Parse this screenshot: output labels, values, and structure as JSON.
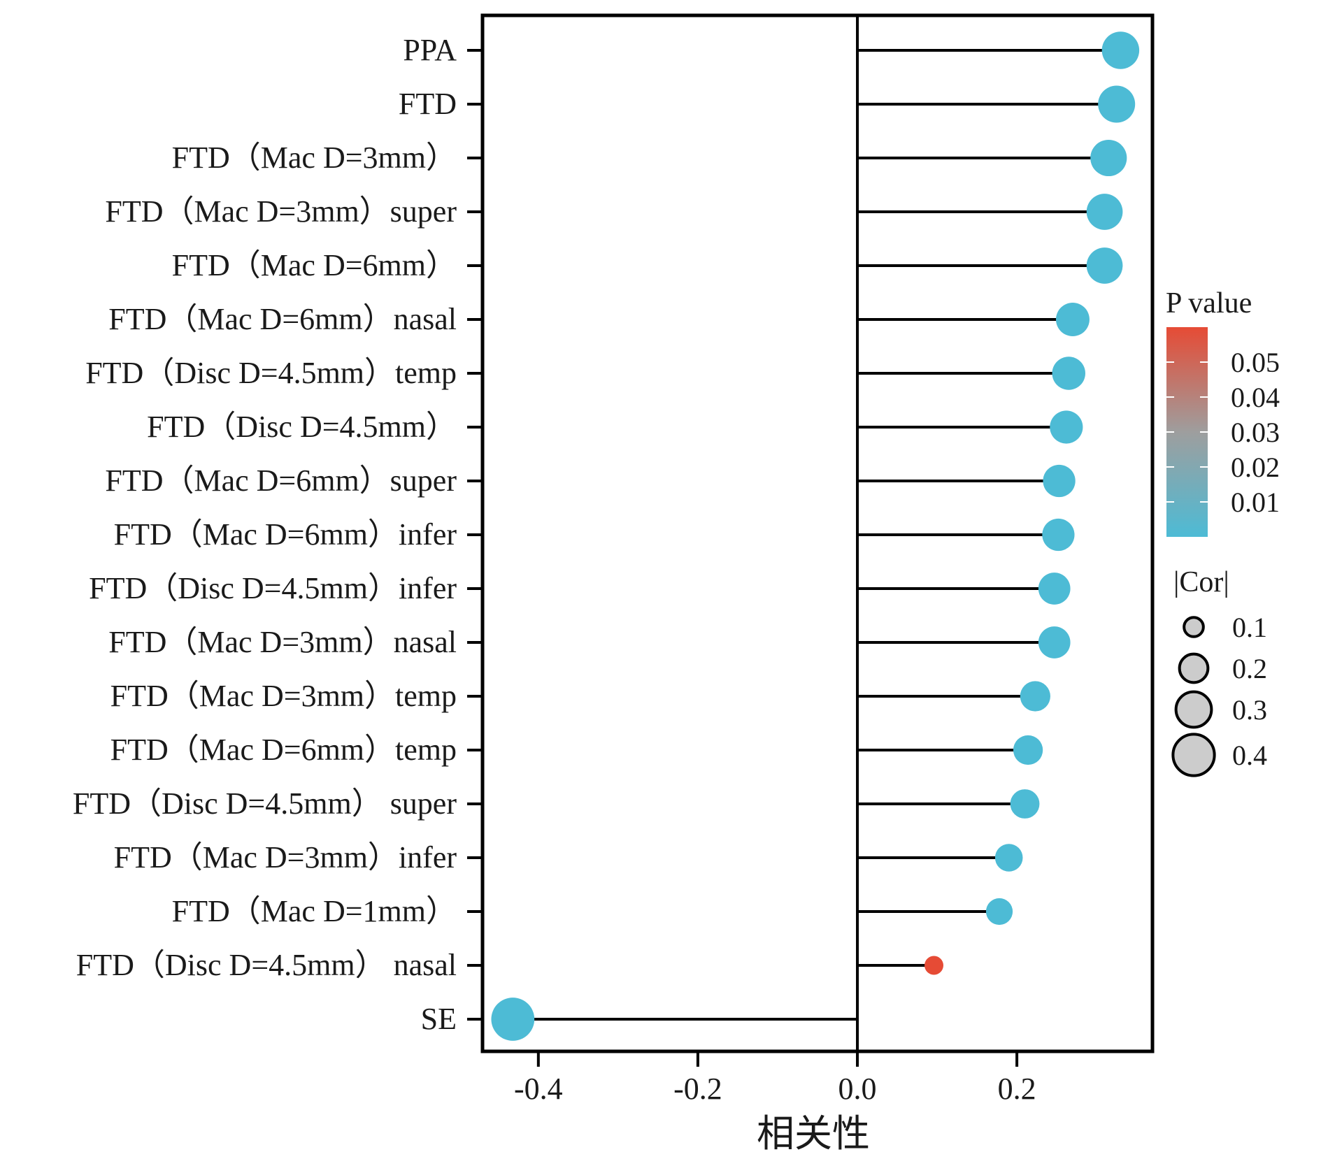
{
  "chart_data": {
    "type": "lollipop",
    "xlabel": "相关性",
    "ylabel": "",
    "xlim": [
      -0.47,
      0.37
    ],
    "xticks": [
      "-0.4",
      "-0.2",
      "0.0",
      "0.2"
    ],
    "xtick_values": [
      -0.4,
      -0.2,
      0.0,
      0.2
    ],
    "grid": false,
    "legend_position": "right",
    "categories": [
      "PPA",
      "FTD",
      "FTD（Mac D=3mm）",
      "FTD（Mac D=3mm）super",
      "FTD（Mac D=6mm）",
      "FTD（Mac D=6mm）nasal",
      "FTD（Disc D=4.5mm）temp",
      "FTD（Disc D=4.5mm）",
      "FTD（Mac D=6mm）super",
      "FTD（Mac D=6mm）infer",
      "FTD（Disc D=4.5mm）infer",
      "FTD（Mac D=3mm）nasal",
      "FTD（Mac D=3mm）temp",
      "FTD（Mac D=6mm）temp",
      "FTD（Disc D=4.5mm）  super",
      "FTD（Mac D=3mm）infer",
      "FTD（Mac D=1mm）",
      "FTD（Disc D=4.5mm） nasal",
      "SE"
    ],
    "values": [
      0.33,
      0.325,
      0.315,
      0.31,
      0.31,
      0.27,
      0.265,
      0.262,
      0.253,
      0.252,
      0.247,
      0.247,
      0.223,
      0.214,
      0.21,
      0.19,
      0.178,
      0.096,
      -0.432
    ],
    "p_values": [
      0.0,
      0.0,
      0.0,
      0.0,
      0.0,
      0.0,
      0.0,
      0.0,
      0.0,
      0.0,
      0.0,
      0.0,
      0.0,
      0.0,
      0.0,
      0.0,
      0.0,
      0.06,
      0.0
    ],
    "color_legend": {
      "title": "P value",
      "ticks": [
        "0.05",
        "0.04",
        "0.03",
        "0.02",
        "0.01"
      ],
      "tick_values": [
        0.05,
        0.04,
        0.03,
        0.02,
        0.01
      ],
      "range": [
        0.0,
        0.06
      ],
      "low_color": "#4dbbd5",
      "high_color": "#e64b35",
      "mid_color": "#9e9e9e"
    },
    "size_legend": {
      "title": "|Cor|",
      "labels": [
        "0.1",
        "0.2",
        "0.3",
        "0.4"
      ],
      "values": [
        0.1,
        0.2,
        0.3,
        0.4
      ]
    }
  }
}
